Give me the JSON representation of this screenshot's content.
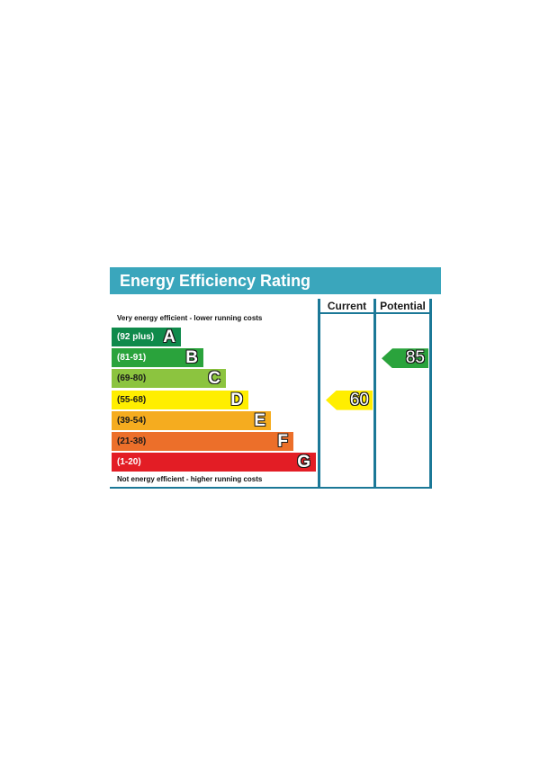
{
  "chart_data": {
    "type": "bar",
    "title": "Energy Efficiency Rating",
    "columns": [
      "Current",
      "Potential"
    ],
    "top_caption": "Very energy efficient - lower running costs",
    "bottom_caption": "Not energy efficient - higher running costs",
    "bands": [
      {
        "letter": "A",
        "range": "(92 plus)",
        "color": "#0f8a4b",
        "text_color": "#ffffff"
      },
      {
        "letter": "B",
        "range": "(81-91)",
        "color": "#2aa33c",
        "text_color": "#ffffff"
      },
      {
        "letter": "C",
        "range": "(69-80)",
        "color": "#8cc43f",
        "text_color": "#1a1a1a"
      },
      {
        "letter": "D",
        "range": "(55-68)",
        "color": "#ffee00",
        "text_color": "#1a1a1a"
      },
      {
        "letter": "E",
        "range": "(39-54)",
        "color": "#f5ac1f",
        "text_color": "#1a1a1a"
      },
      {
        "letter": "F",
        "range": "(21-38)",
        "color": "#ec6f2a",
        "text_color": "#1a1a1a"
      },
      {
        "letter": "G",
        "range": "(1-20)",
        "color": "#e31d25",
        "text_color": "#ffffff"
      }
    ],
    "ratings": {
      "current": {
        "value": 60,
        "band": "D",
        "color": "#ffee00"
      },
      "potential": {
        "value": 85,
        "band": "B",
        "color": "#2aa33c"
      }
    },
    "colors": {
      "header": "#3aa6bc",
      "frame": "#1b7897"
    }
  }
}
